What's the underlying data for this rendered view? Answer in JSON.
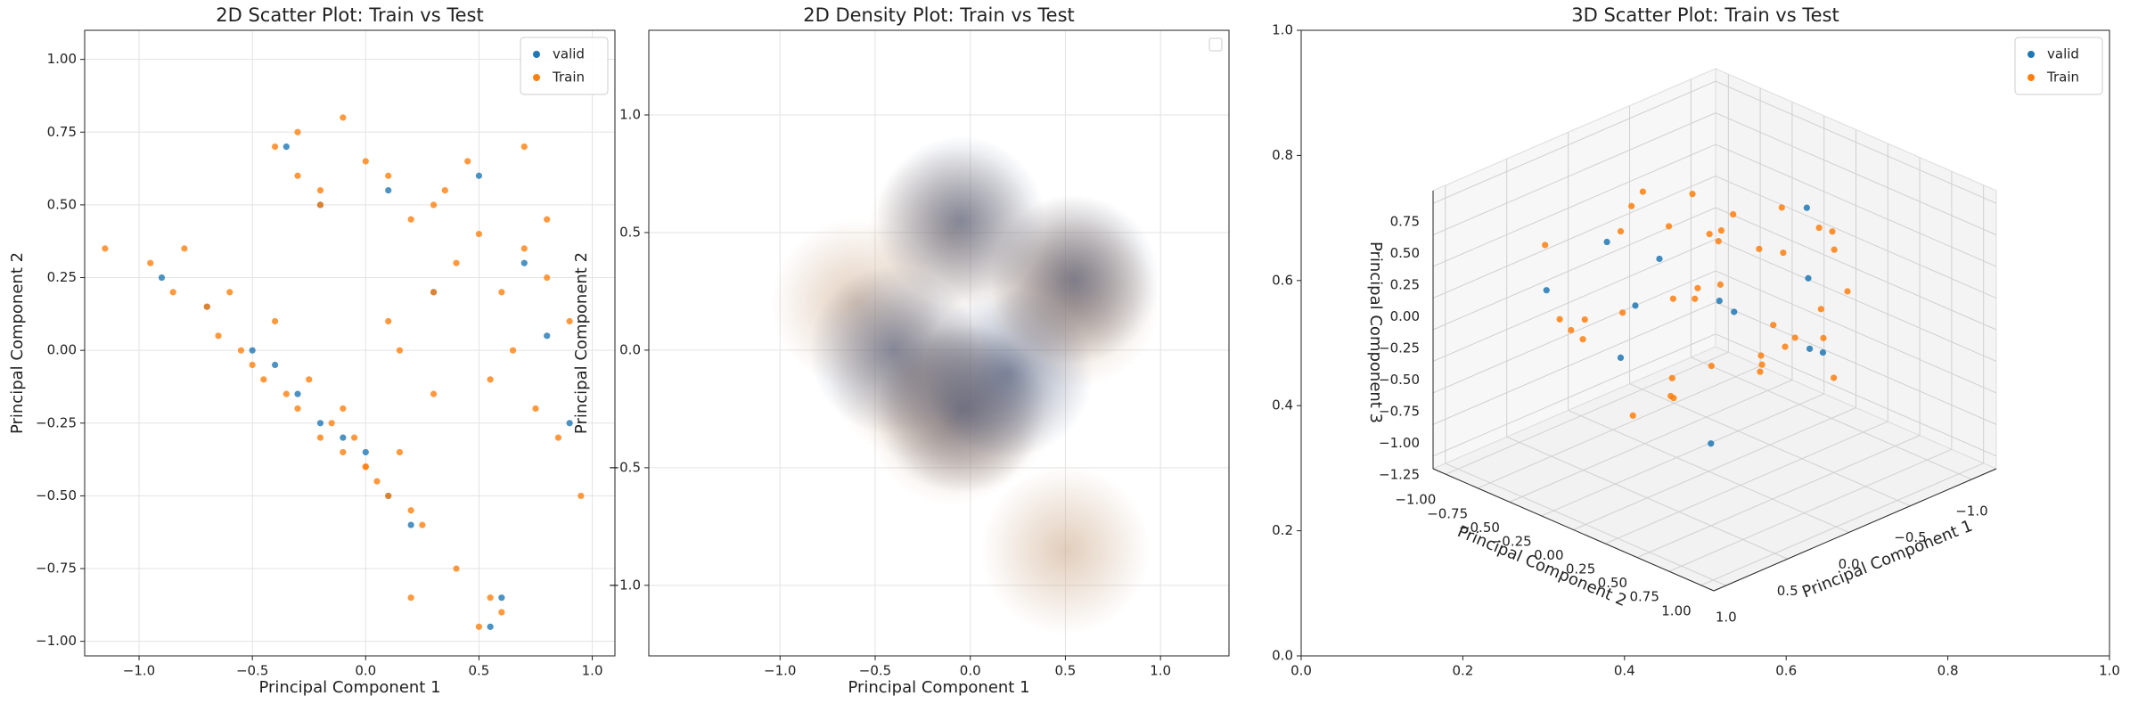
{
  "chart_data": [
    {
      "type": "scatter",
      "title": "2D Scatter Plot: Train vs Test",
      "xlabel": "Principal Component 1",
      "ylabel": "Principal Component 2",
      "xlim": [
        -1.24,
        1.1
      ],
      "ylim": [
        -1.05,
        1.1
      ],
      "xticks": [
        {
          "value": -1.0,
          "label": "−1.0"
        },
        {
          "value": -0.5,
          "label": "−0.5"
        },
        {
          "value": 0.0,
          "label": "0.0"
        },
        0.5,
        {
          "value": 1.0,
          "label": "1.0"
        }
      ],
      "yticks": [
        {
          "value": 1.0,
          "label": "1.00"
        },
        0.75,
        {
          "value": 0.5,
          "label": "0.50"
        },
        0.25,
        {
          "value": 0.0,
          "label": "0.00"
        },
        {
          "value": -0.25,
          "label": "−0.25"
        },
        {
          "value": -0.5,
          "label": "−0.50"
        },
        {
          "value": -0.75,
          "label": "−0.75"
        },
        {
          "value": -1.0,
          "label": "−1.00"
        }
      ],
      "grid": true,
      "legend": "upper right",
      "series": [
        {
          "name": "valid",
          "color": "#1f77b4",
          "x": [
            -0.9,
            -0.7,
            -0.5,
            -0.4,
            -0.3,
            -0.2,
            -0.1,
            0.0,
            0.1,
            0.2,
            -0.35,
            -0.2,
            0.1,
            0.3,
            0.5,
            0.7,
            0.8,
            0.55,
            0.6,
            0.9
          ],
          "values": [
            0.25,
            0.15,
            0.0,
            -0.05,
            -0.15,
            -0.25,
            -0.3,
            -0.35,
            -0.5,
            -0.6,
            0.7,
            0.5,
            0.55,
            0.2,
            0.6,
            0.3,
            0.05,
            -0.95,
            -0.85,
            -0.25
          ]
        },
        {
          "name": "Train",
          "color": "#ff7f0e",
          "x": [
            -1.15,
            -0.95,
            -0.85,
            -0.8,
            -0.7,
            -0.65,
            -0.6,
            -0.55,
            -0.5,
            -0.45,
            -0.4,
            -0.35,
            -0.3,
            -0.25,
            -0.2,
            -0.15,
            -0.1,
            -0.05,
            0.0,
            0.05,
            0.1,
            0.15,
            0.2,
            0.25,
            -0.4,
            -0.3,
            -0.2,
            -0.1,
            0.0,
            0.1,
            0.2,
            0.3,
            0.4,
            0.5,
            0.6,
            0.7,
            0.8,
            0.9,
            0.55,
            0.65,
            0.75,
            0.85,
            0.95,
            0.45,
            0.35,
            0.3,
            0.1,
            -0.2,
            -0.3,
            0.55,
            0.6,
            0.5,
            0.4,
            0.2,
            0.0,
            -0.1,
            0.7,
            0.8,
            0.3,
            0.15
          ],
          "values": [
            0.35,
            0.3,
            0.2,
            0.35,
            0.15,
            0.05,
            0.2,
            0.0,
            -0.05,
            -0.1,
            0.1,
            -0.15,
            -0.2,
            -0.1,
            -0.3,
            -0.25,
            -0.35,
            -0.3,
            -0.4,
            -0.45,
            -0.5,
            -0.35,
            -0.55,
            -0.6,
            0.7,
            0.75,
            0.55,
            0.8,
            0.65,
            0.6,
            0.45,
            0.5,
            0.3,
            0.4,
            0.2,
            0.35,
            0.25,
            0.1,
            -0.1,
            0.0,
            -0.2,
            -0.3,
            -0.5,
            0.65,
            0.55,
            0.2,
            0.1,
            0.5,
            0.6,
            -0.85,
            -0.9,
            -0.95,
            -0.75,
            -0.85,
            -0.4,
            -0.2,
            0.7,
            0.45,
            -0.15,
            0.0
          ]
        }
      ]
    },
    {
      "type": "density",
      "title": "2D Density Plot: Train vs Test",
      "xlabel": "Principal Component 1",
      "ylabel": "Principal Component 2",
      "xlim": [
        -1.69,
        1.36
      ],
      "ylim": [
        -1.3,
        1.36
      ],
      "xticks": [
        {
          "value": -1.0,
          "label": "−1.0"
        },
        {
          "value": -0.5,
          "label": "−0.5"
        },
        {
          "value": 0.0,
          "label": "0.0"
        },
        0.5,
        {
          "value": 1.0,
          "label": "1.0"
        }
      ],
      "yticks": [
        {
          "value": 1.0,
          "label": "1.0"
        },
        0.5,
        {
          "value": 0.0,
          "label": "0.0"
        },
        {
          "value": -0.5,
          "label": "−0.5"
        },
        {
          "value": -1.0,
          "label": "−1.0"
        }
      ],
      "grid": true,
      "legend": "upper right",
      "series": [
        {
          "color": "#c9a483",
          "x": [
            -0.1,
            0.0,
            -0.3,
            -0.6,
            -0.1,
            0.5,
            0.55,
            0.5
          ],
          "values": [
            -0.3,
            -0.25,
            -0.1,
            0.2,
            0.5,
            0.3,
            0.2,
            -0.85
          ]
        },
        {
          "color": "#34466f",
          "x": [
            -0.05,
            -0.05,
            0.55,
            -0.4,
            0.2
          ],
          "values": [
            -0.25,
            0.55,
            0.3,
            0.0,
            -0.1
          ]
        }
      ]
    },
    {
      "type": "scatter3d",
      "title": "3D Scatter Plot: Train vs Test",
      "xlabel": "Principal Component 1",
      "ylabel": "Principal Component 2",
      "zlabel": "Principal Component 3",
      "frame_xlim": [
        0,
        1
      ],
      "frame_ylim": [
        0,
        1
      ],
      "frame_xticks": [
        {
          "value": 0.0,
          "label": "0.0"
        },
        0.2,
        0.4,
        0.6,
        0.8,
        {
          "value": 1.0,
          "label": "1.0"
        }
      ],
      "frame_yticks": [
        {
          "value": 0.0,
          "label": "0.0"
        },
        0.2,
        0.4,
        0.6,
        0.8,
        {
          "value": 1.0,
          "label": "1.0"
        }
      ],
      "xlim": [
        -1.2,
        1.1
      ],
      "ylim": [
        -1.1,
        1.1
      ],
      "zlim": [
        -1.35,
        0.85
      ],
      "xticks": [
        {
          "value": -1.0,
          "label": "−1.0"
        },
        {
          "value": -0.5,
          "label": "−0.5"
        },
        {
          "value": 0.0,
          "label": "0.0"
        },
        0.5,
        {
          "value": 1.0,
          "label": "1.0"
        }
      ],
      "yticks": [
        {
          "value": -1.0,
          "label": "−1.00"
        },
        {
          "value": -0.75,
          "label": "−0.75"
        },
        {
          "value": -0.5,
          "label": "−0.50"
        },
        {
          "value": -0.25,
          "label": "−0.25"
        },
        {
          "value": 0.0,
          "label": "0.00"
        },
        0.25,
        {
          "value": 0.5,
          "label": "0.50"
        },
        0.75,
        {
          "value": 1.0,
          "label": "1.00"
        }
      ],
      "zticks": [
        0.75,
        {
          "value": 0.5,
          "label": "0.50"
        },
        0.25,
        {
          "value": 0.0,
          "label": "0.00"
        },
        {
          "value": -0.25,
          "label": "−0.25"
        },
        {
          "value": -0.5,
          "label": "−0.50"
        },
        {
          "value": -0.75,
          "label": "−0.75"
        },
        {
          "value": -1.0,
          "label": "−1.00"
        },
        {
          "value": -1.25,
          "label": "−1.25"
        }
      ],
      "legend": "upper right",
      "series": [
        {
          "name": "valid",
          "color": "#1f77b4",
          "x": [
            -0.5,
            0.3,
            0.7,
            -0.2,
            0.1,
            -0.8,
            0.5,
            0.0,
            -0.4,
            0.8,
            -0.1,
            0.4
          ],
          "y": [
            0.3,
            -0.4,
            0.1,
            0.6,
            -0.7,
            0.0,
            0.5,
            0.2,
            -0.3,
            -0.5,
            0.8,
            0.0
          ],
          "z": [
            0.1,
            -0.5,
            0.3,
            -0.2,
            0.2,
            0.4,
            -0.7,
            0.0,
            -0.3,
            0.2,
            -0.1,
            0.5
          ]
        },
        {
          "name": "Train",
          "color": "#ff7f0e",
          "x": [
            -0.8,
            -0.6,
            -0.4,
            -0.2,
            0.0,
            0.2,
            0.4,
            0.6,
            0.8,
            -0.7,
            -0.5,
            -0.3,
            -0.1,
            0.1,
            0.3,
            0.5,
            0.7,
            -0.6,
            -0.2,
            0.2,
            0.6,
            -0.4,
            0.0,
            0.4,
            -0.9,
            0.9,
            -0.5,
            0.5,
            0.1,
            -0.1,
            0.3,
            -0.3,
            0.7,
            -0.7,
            0.0,
            0.2,
            -0.2,
            0.4,
            -0.4,
            0.6
          ],
          "y": [
            0.2,
            -0.5,
            0.6,
            -0.3,
            0.1,
            0.7,
            -0.6,
            0.3,
            -0.2,
            -0.8,
            0.4,
            0.8,
            -0.7,
            0.5,
            -0.4,
            0.9,
            0.0,
            0.1,
            -0.1,
            0.2,
            -0.5,
            -0.9,
            0.6,
            0.3,
            0.0,
            -0.3,
            0.5,
            -0.8,
            -0.2,
            0.3,
            0.7,
            -0.6,
            0.4,
            -0.1,
            0.9,
            -0.4,
            0.0,
            0.1,
            0.2,
            0.6
          ],
          "z": [
            0.3,
            0.0,
            0.5,
            -0.2,
            0.6,
            0.2,
            -0.4,
            0.4,
            0.1,
            0.2,
            -0.1,
            0.3,
            0.4,
            -0.3,
            0.5,
            0.1,
            0.2,
            -0.5,
            0.0,
            0.7,
            -0.2,
            0.3,
            -0.1,
            0.4,
            0.2,
            0.1,
            -0.6,
            0.3,
            -0.8,
            0.5,
            0.0,
            0.2,
            -0.3,
            0.4,
            0.1,
            -1.0,
            0.6,
            -0.4,
            0.3,
            0.0
          ]
        }
      ]
    }
  ]
}
